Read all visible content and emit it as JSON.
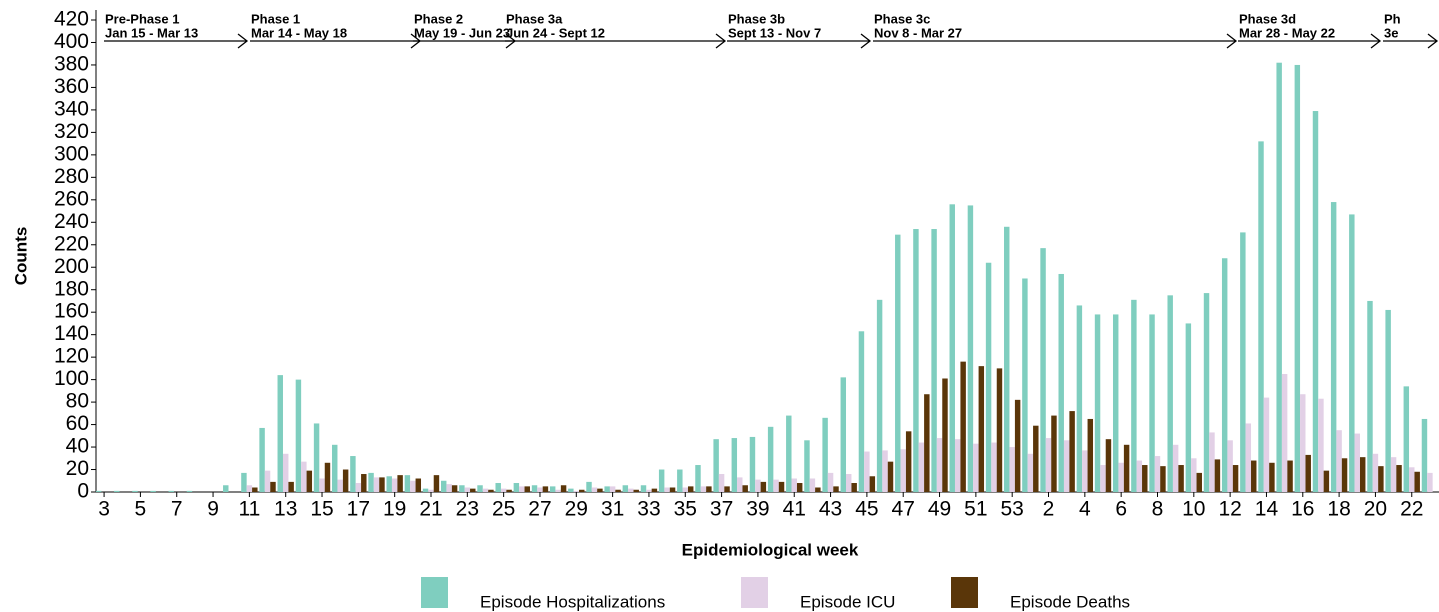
{
  "chart_data": {
    "type": "bar",
    "x_label": "Epidemiological week",
    "y_label": "Counts",
    "categories": [
      "3",
      null,
      "5",
      null,
      "7",
      null,
      "9",
      null,
      "11",
      null,
      "13",
      null,
      "15",
      null,
      "17",
      null,
      "19",
      null,
      "21",
      null,
      "23",
      null,
      "25",
      null,
      "27",
      null,
      "29",
      null,
      "31",
      null,
      "33",
      null,
      "35",
      null,
      "37",
      null,
      "39",
      null,
      "41",
      null,
      "43",
      null,
      "45",
      null,
      "47",
      null,
      "49",
      null,
      "51",
      null,
      "53",
      null,
      "2",
      null,
      "4",
      null,
      "6",
      null,
      "8",
      null,
      "10",
      null,
      "12",
      null,
      "14",
      null,
      "16",
      null,
      "18",
      null,
      "20",
      null,
      "22",
      null
    ],
    "series": [
      {
        "name": "Episode Hospitalizations",
        "color": "#7fcebf",
        "values": [
          1,
          1,
          1,
          1,
          1,
          1,
          0,
          6,
          17,
          57,
          104,
          100,
          61,
          42,
          32,
          17,
          14,
          15,
          3,
          10,
          6,
          6,
          8,
          8,
          6,
          5,
          3,
          9,
          5,
          6,
          6,
          20,
          20,
          24,
          47,
          48,
          49,
          58,
          68,
          46,
          66,
          102,
          143,
          171,
          229,
          234,
          234,
          256,
          255,
          204,
          236,
          190,
          217,
          194,
          166,
          158,
          158,
          171,
          158,
          175,
          150,
          177,
          208,
          231,
          312,
          382,
          380,
          339,
          258,
          247,
          170,
          162,
          94,
          65
        ]
      },
      {
        "name": "Episode ICU",
        "color": "#e2d0e6",
        "values": [
          0,
          0,
          0,
          0,
          0,
          0,
          0,
          0,
          6,
          19,
          34,
          27,
          12,
          11,
          8,
          13,
          12,
          10,
          2,
          7,
          4,
          3,
          3,
          5,
          4,
          2,
          1,
          4,
          5,
          3,
          2,
          4,
          4,
          5,
          16,
          13,
          11,
          11,
          12,
          12,
          17,
          16,
          36,
          37,
          38,
          44,
          48,
          47,
          43,
          44,
          40,
          34,
          48,
          46,
          37,
          24,
          26,
          28,
          32,
          42,
          30,
          53,
          46,
          61,
          84,
          105,
          87,
          83,
          55,
          52,
          34,
          31,
          22,
          17
        ]
      },
      {
        "name": "Episode Deaths",
        "color": "#5a3609",
        "values": [
          0,
          0,
          0,
          0,
          0,
          0,
          0,
          0,
          4,
          9,
          9,
          19,
          26,
          20,
          16,
          13,
          15,
          12,
          15,
          6,
          3,
          2,
          2,
          5,
          5,
          6,
          2,
          3,
          2,
          2,
          3,
          4,
          5,
          5,
          5,
          6,
          9,
          9,
          8,
          4,
          5,
          8,
          14,
          27,
          54,
          87,
          101,
          116,
          112,
          110,
          82,
          59,
          68,
          72,
          65,
          47,
          42,
          24,
          23,
          24,
          17,
          29,
          24,
          28,
          26,
          28,
          33,
          19,
          30,
          31,
          23,
          24,
          18,
          0
        ]
      }
    ],
    "ylim": [
      0,
      420
    ],
    "yticks": [
      0,
      20,
      40,
      60,
      80,
      100,
      120,
      140,
      160,
      180,
      200,
      220,
      240,
      260,
      280,
      300,
      320,
      340,
      360,
      380,
      400,
      420
    ],
    "annotations": [
      {
        "title": "Pre-Phase 1",
        "dates": "Jan 15 - Mar 13"
      },
      {
        "title": "Phase 1",
        "dates": "Mar 14 - May 18"
      },
      {
        "title": "Phase 2",
        "dates": "May 19 - Jun 23"
      },
      {
        "title": "Phase 3a",
        "dates": "Jun 24 - Sept 12"
      },
      {
        "title": "Phase 3b",
        "dates": "Sept 13 - Nov 7"
      },
      {
        "title": "Phase 3c",
        "dates": "Nov 8 - Mar 27"
      },
      {
        "title": "Phase 3d",
        "dates": "Mar 28 - May 22"
      },
      {
        "title": "Ph",
        "dates": "3e"
      }
    ]
  }
}
